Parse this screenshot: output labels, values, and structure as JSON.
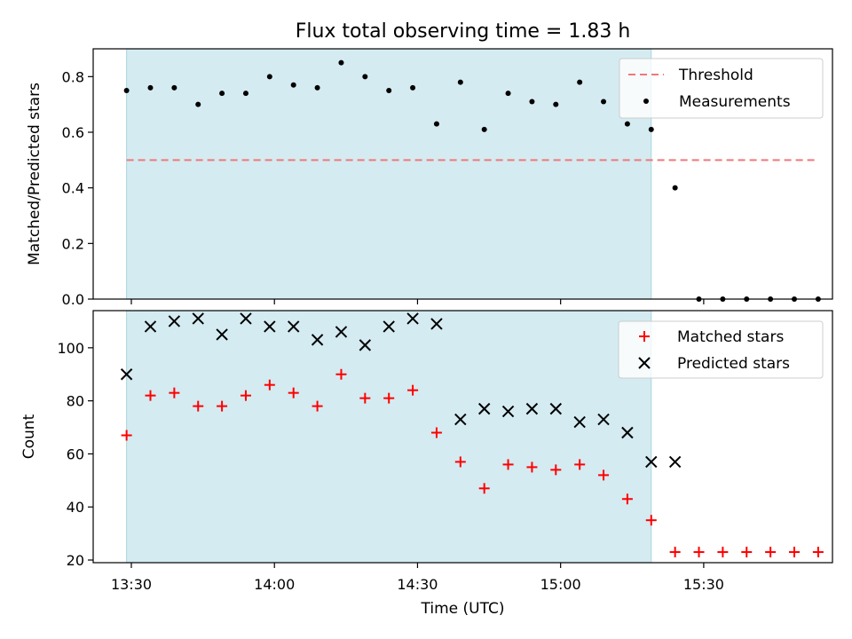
{
  "chart_data": [
    {
      "type": "scatter",
      "title": "Flux total observing time = 1.83 h",
      "xlabel": "",
      "ylabel": "Matched/Predicted stars",
      "ylim": [
        0.0,
        0.9
      ],
      "yticks": [
        0.0,
        0.2,
        0.4,
        0.6,
        0.8
      ],
      "ytick_labels": [
        "0.0",
        "0.2",
        "0.4",
        "0.6",
        "0.8"
      ],
      "xlim": [
        "13:22",
        "15:57"
      ],
      "observing_window": [
        "13:29",
        "15:19"
      ],
      "observing_window_color": "#d4ebf1",
      "grid": false,
      "legend_location": "upper right",
      "threshold": {
        "name": "Threshold",
        "y": 0.5,
        "x": [
          "13:29",
          "15:54"
        ],
        "color": "#f07878",
        "style": "dashed"
      },
      "series": [
        {
          "name": "Measurements",
          "color": "#000000",
          "marker": "dot",
          "x": [
            "13:29",
            "13:34",
            "13:39",
            "13:44",
            "13:49",
            "13:54",
            "13:59",
            "14:04",
            "14:09",
            "14:14",
            "14:19",
            "14:24",
            "14:29",
            "14:34",
            "14:39",
            "14:44",
            "14:49",
            "14:54",
            "14:59",
            "15:04",
            "15:09",
            "15:14",
            "15:19",
            "15:24",
            "15:29",
            "15:34",
            "15:39",
            "15:44",
            "15:49",
            "15:54"
          ],
          "y": [
            0.75,
            0.76,
            0.76,
            0.7,
            0.74,
            0.74,
            0.8,
            0.77,
            0.76,
            0.85,
            0.8,
            0.75,
            0.76,
            0.63,
            0.78,
            0.61,
            0.74,
            0.71,
            0.7,
            0.78,
            0.71,
            0.63,
            0.61,
            0.4,
            0.0,
            0.0,
            0.0,
            0.0,
            0.0,
            0.0
          ]
        }
      ]
    },
    {
      "type": "scatter",
      "title": "",
      "xlabel": "Time (UTC)",
      "ylabel": "Count",
      "ylim": [
        19,
        114
      ],
      "yticks": [
        20,
        40,
        60,
        80,
        100
      ],
      "ytick_labels": [
        "20",
        "40",
        "60",
        "80",
        "100"
      ],
      "xlim": [
        "13:22",
        "15:57"
      ],
      "xticks": [
        "13:30",
        "14:00",
        "14:30",
        "15:00",
        "15:30"
      ],
      "xtick_labels": [
        "13:30",
        "14:00",
        "14:30",
        "15:00",
        "15:30"
      ],
      "observing_window": [
        "13:29",
        "15:19"
      ],
      "observing_window_color": "#d4ebf1",
      "grid": false,
      "legend_location": "upper right",
      "series": [
        {
          "name": "Matched stars",
          "color": "#ff0000",
          "marker": "plus",
          "x": [
            "13:29",
            "13:34",
            "13:39",
            "13:44",
            "13:49",
            "13:54",
            "13:59",
            "14:04",
            "14:09",
            "14:14",
            "14:19",
            "14:24",
            "14:29",
            "14:34",
            "14:39",
            "14:44",
            "14:49",
            "14:54",
            "14:59",
            "15:04",
            "15:09",
            "15:14",
            "15:19",
            "15:24",
            "15:29",
            "15:34",
            "15:39",
            "15:44",
            "15:49",
            "15:54"
          ],
          "y": [
            67,
            82,
            83,
            78,
            78,
            82,
            86,
            83,
            78,
            90,
            81,
            81,
            84,
            68,
            57,
            47,
            56,
            55,
            54,
            56,
            52,
            43,
            35,
            23,
            23,
            23,
            23,
            23,
            23,
            23
          ]
        },
        {
          "name": "Predicted stars",
          "color": "#000000",
          "marker": "x",
          "x": [
            "13:29",
            "13:34",
            "13:39",
            "13:44",
            "13:49",
            "13:54",
            "13:59",
            "14:04",
            "14:09",
            "14:14",
            "14:19",
            "14:24",
            "14:29",
            "14:34",
            "14:39",
            "14:44",
            "14:49",
            "14:54",
            "14:59",
            "15:04",
            "15:09",
            "15:14",
            "15:19",
            "15:24"
          ],
          "y": [
            90,
            108,
            110,
            111,
            105,
            111,
            108,
            108,
            103,
            106,
            101,
            108,
            111,
            109,
            73,
            77,
            76,
            77,
            77,
            72,
            73,
            68,
            57,
            57
          ]
        }
      ]
    }
  ]
}
